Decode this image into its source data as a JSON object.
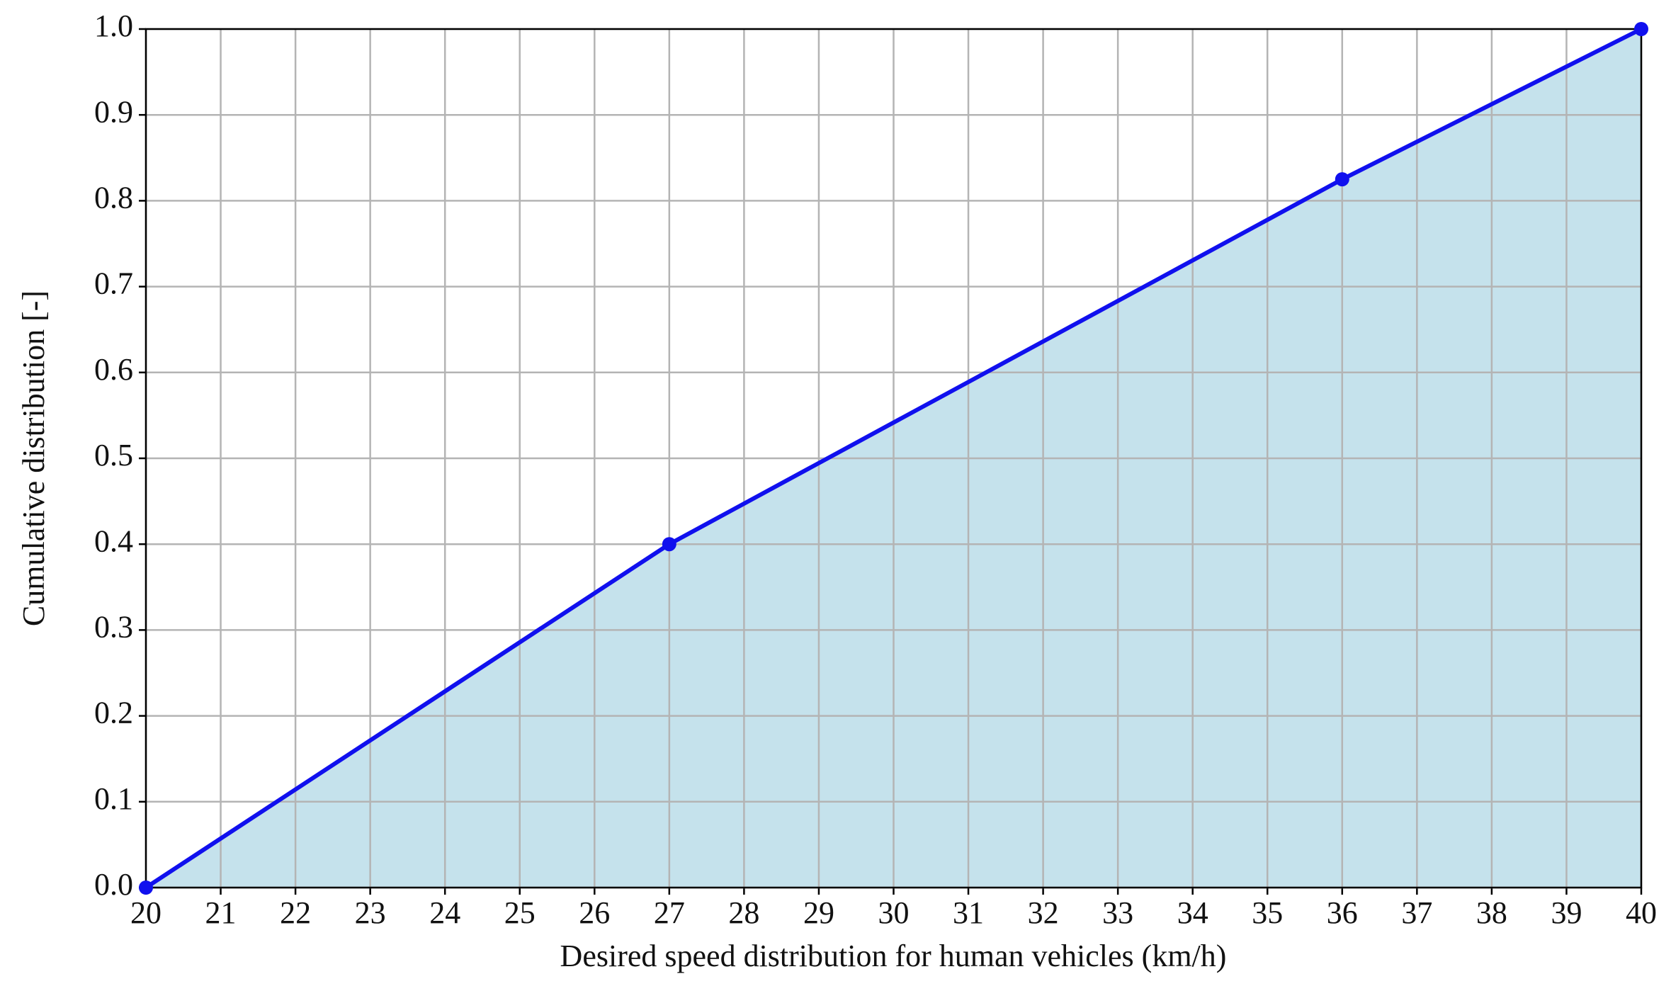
{
  "chart_data": {
    "type": "area-line",
    "xlabel": "Desired speed distribution for human vehicles (km/h)",
    "ylabel": "Cumulative distribution [-]",
    "x": [
      20,
      27,
      36,
      40
    ],
    "series": [
      {
        "color": "#1010ee",
        "fill": "#c5e2ec",
        "values": [
          0,
          0.4,
          0.825,
          1
        ]
      }
    ],
    "xlim": [
      20,
      40
    ],
    "xticks": [
      20,
      21,
      22,
      23,
      24,
      25,
      26,
      27,
      28,
      29,
      30,
      31,
      32,
      33,
      34,
      35,
      36,
      37,
      38,
      39,
      40
    ],
    "ylim": [
      0,
      1
    ],
    "yticks": [
      {
        "value": 0,
        "label": "0.0"
      },
      0.1,
      0.2,
      0.3,
      0.4,
      0.5,
      0.6,
      0.7,
      0.8,
      0.9,
      {
        "value": 1,
        "label": "1.0"
      }
    ],
    "grid": true
  }
}
